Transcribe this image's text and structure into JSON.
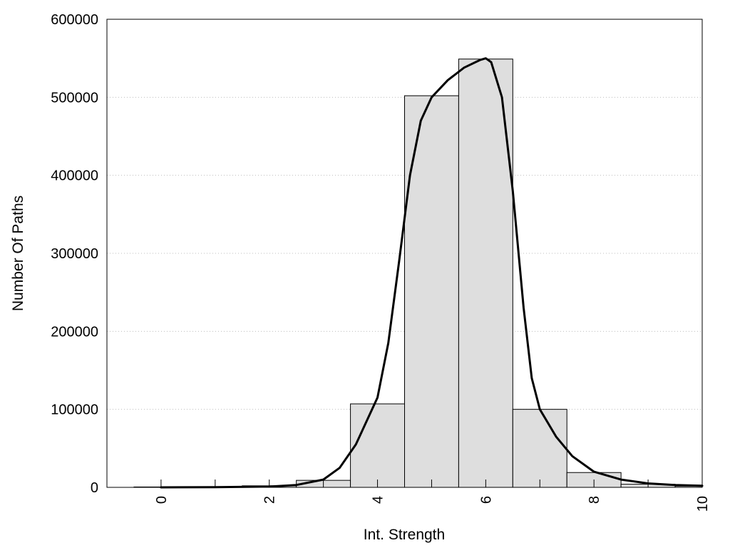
{
  "chart_data": {
    "type": "bar",
    "xlabel": "Int. Strength",
    "ylabel": "Number Of Paths",
    "xlim": [
      -1,
      10
    ],
    "ylim": [
      0,
      600000
    ],
    "x_ticks": [
      "0",
      "2",
      "4",
      "6",
      "8",
      "10"
    ],
    "x_tick_values": [
      0,
      2,
      4,
      6,
      8,
      10
    ],
    "y_ticks": [
      "0",
      "100000",
      "200000",
      "300000",
      "400000",
      "500000",
      "600000"
    ],
    "y_tick_values": [
      0,
      100000,
      200000,
      300000,
      400000,
      500000,
      600000
    ],
    "grid": "horizontal-dotted",
    "bars": {
      "x": [
        0,
        1,
        2,
        3,
        4,
        5,
        6,
        7,
        8,
        9,
        10
      ],
      "values": [
        500,
        800,
        2000,
        9000,
        107000,
        502000,
        549000,
        100000,
        19000,
        4000,
        1500
      ]
    },
    "curve": {
      "x": [
        0,
        1,
        2,
        2.5,
        3,
        3.3,
        3.6,
        4,
        4.2,
        4.4,
        4.6,
        4.8,
        5,
        5.3,
        5.6,
        5.9,
        6,
        6.1,
        6.3,
        6.5,
        6.7,
        6.85,
        7,
        7.3,
        7.6,
        8,
        8.5,
        9,
        9.5,
        10
      ],
      "values": [
        0,
        300,
        1000,
        3000,
        10000,
        25000,
        55000,
        115000,
        185000,
        290000,
        400000,
        470000,
        500000,
        522000,
        538000,
        548000,
        550000,
        545000,
        500000,
        380000,
        230000,
        140000,
        100000,
        65000,
        40000,
        20000,
        10000,
        5000,
        3000,
        2000
      ]
    }
  }
}
